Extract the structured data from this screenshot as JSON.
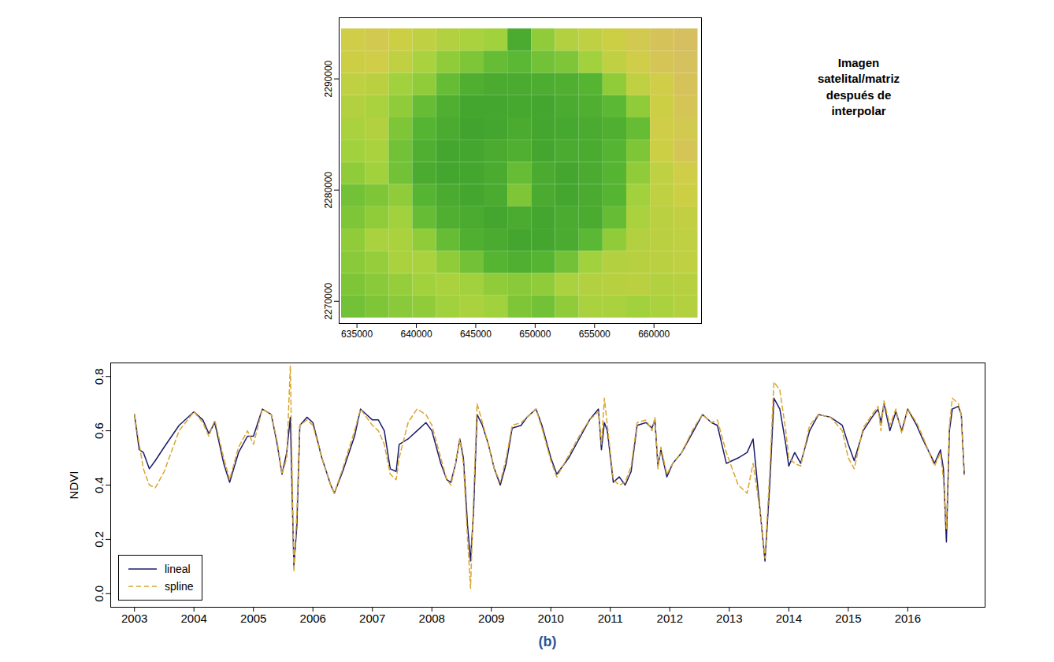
{
  "chart_data": [
    {
      "type": "raster",
      "annotations": [
        "Imagen satelital/matriz después de interpolar"
      ],
      "x": [
        634700,
        636700,
        638700,
        640700,
        642700,
        644700,
        646700,
        648700,
        650700,
        652700,
        654700,
        656700,
        658700,
        660700,
        662700
      ],
      "y": [
        2293500,
        2291500,
        2289500,
        2287500,
        2285500,
        2283500,
        2281500,
        2279500,
        2277500,
        2275500,
        2273500,
        2271500,
        2269500
      ],
      "values": [
        [
          0.4,
          0.38,
          0.42,
          0.45,
          0.48,
          0.5,
          0.52,
          0.7,
          0.55,
          0.48,
          0.45,
          0.42,
          0.38,
          0.35,
          0.33
        ],
        [
          0.42,
          0.4,
          0.45,
          0.5,
          0.55,
          0.58,
          0.62,
          0.64,
          0.6,
          0.58,
          0.52,
          0.45,
          0.4,
          0.36,
          0.34
        ],
        [
          0.45,
          0.46,
          0.52,
          0.55,
          0.62,
          0.68,
          0.7,
          0.7,
          0.69,
          0.68,
          0.66,
          0.55,
          0.45,
          0.4,
          0.35
        ],
        [
          0.48,
          0.5,
          0.55,
          0.62,
          0.68,
          0.72,
          0.72,
          0.71,
          0.72,
          0.7,
          0.68,
          0.64,
          0.55,
          0.42,
          0.36
        ],
        [
          0.5,
          0.48,
          0.58,
          0.66,
          0.7,
          0.73,
          0.72,
          0.7,
          0.72,
          0.71,
          0.7,
          0.68,
          0.62,
          0.4,
          0.38
        ],
        [
          0.52,
          0.5,
          0.6,
          0.68,
          0.72,
          0.72,
          0.7,
          0.68,
          0.72,
          0.7,
          0.7,
          0.66,
          0.58,
          0.42,
          0.36
        ],
        [
          0.55,
          0.52,
          0.6,
          0.7,
          0.72,
          0.72,
          0.7,
          0.62,
          0.7,
          0.72,
          0.7,
          0.66,
          0.55,
          0.45,
          0.4
        ],
        [
          0.6,
          0.58,
          0.55,
          0.66,
          0.7,
          0.72,
          0.7,
          0.58,
          0.7,
          0.72,
          0.7,
          0.66,
          0.52,
          0.45,
          0.42
        ],
        [
          0.58,
          0.55,
          0.52,
          0.62,
          0.68,
          0.7,
          0.72,
          0.7,
          0.72,
          0.7,
          0.7,
          0.62,
          0.5,
          0.46,
          0.44
        ],
        [
          0.55,
          0.5,
          0.5,
          0.55,
          0.62,
          0.68,
          0.7,
          0.72,
          0.72,
          0.7,
          0.64,
          0.55,
          0.48,
          0.46,
          0.45
        ],
        [
          0.56,
          0.54,
          0.5,
          0.5,
          0.55,
          0.6,
          0.66,
          0.68,
          0.66,
          0.6,
          0.52,
          0.48,
          0.47,
          0.46,
          0.45
        ],
        [
          0.58,
          0.56,
          0.54,
          0.52,
          0.5,
          0.52,
          0.55,
          0.56,
          0.55,
          0.5,
          0.48,
          0.47,
          0.46,
          0.48,
          0.47
        ],
        [
          0.6,
          0.58,
          0.56,
          0.55,
          0.52,
          0.5,
          0.52,
          0.58,
          0.6,
          0.55,
          0.5,
          0.5,
          0.52,
          0.5,
          0.48
        ]
      ],
      "color_range": [
        0.3,
        0.75
      ],
      "colors": [
        "#d9b96a",
        "#cfcf45",
        "#9fd13c",
        "#5cb934",
        "#3c9f2d"
      ],
      "xlim": [
        633500,
        664000
      ],
      "ylim": [
        2268000,
        2295500
      ],
      "xticks": [
        635000,
        640000,
        645000,
        650000,
        655000,
        660000
      ],
      "yticks": [
        2270000,
        2280000,
        2290000
      ]
    },
    {
      "type": "line",
      "y_label": "NDVI",
      "caption": "(b)",
      "legend": "bottom-left",
      "x": [
        2003.0,
        2003.08,
        2003.15,
        2003.25,
        2003.35,
        2003.5,
        2003.75,
        2004.0,
        2004.15,
        2004.25,
        2004.35,
        2004.5,
        2004.6,
        2004.75,
        2004.9,
        2005.0,
        2005.15,
        2005.3,
        2005.4,
        2005.48,
        2005.56,
        2005.62,
        2005.68,
        2005.73,
        2005.78,
        2005.9,
        2006.0,
        2006.15,
        2006.3,
        2006.36,
        2006.5,
        2006.7,
        2006.8,
        2006.9,
        2007.0,
        2007.1,
        2007.2,
        2007.3,
        2007.4,
        2007.45,
        2007.6,
        2007.75,
        2007.9,
        2008.0,
        2008.15,
        2008.25,
        2008.32,
        2008.4,
        2008.47,
        2008.53,
        2008.6,
        2008.65,
        2008.7,
        2008.76,
        2008.85,
        2008.95,
        2009.05,
        2009.15,
        2009.25,
        2009.35,
        2009.5,
        2009.6,
        2009.75,
        2009.85,
        2010.0,
        2010.1,
        2010.3,
        2010.5,
        2010.65,
        2010.8,
        2010.85,
        2010.9,
        2010.95,
        2011.05,
        2011.15,
        2011.25,
        2011.35,
        2011.45,
        2011.6,
        2011.7,
        2011.75,
        2011.8,
        2011.85,
        2011.95,
        2012.05,
        2012.2,
        2012.4,
        2012.55,
        2012.7,
        2012.8,
        2012.95,
        2013.15,
        2013.3,
        2013.4,
        2013.52,
        2013.6,
        2013.68,
        2013.75,
        2013.85,
        2013.95,
        2014.0,
        2014.1,
        2014.2,
        2014.35,
        2014.5,
        2014.7,
        2014.9,
        2015.0,
        2015.1,
        2015.25,
        2015.4,
        2015.5,
        2015.55,
        2015.6,
        2015.7,
        2015.8,
        2015.9,
        2016.0,
        2016.15,
        2016.25,
        2016.45,
        2016.55,
        2016.6,
        2016.65,
        2016.7,
        2016.75,
        2016.85,
        2016.9,
        2016.95
      ],
      "series": [
        {
          "name": "lineal",
          "color": "#1b1b6b",
          "line_style": "solid",
          "values": [
            0.66,
            0.53,
            0.52,
            0.46,
            0.49,
            0.54,
            0.62,
            0.67,
            0.64,
            0.59,
            0.63,
            0.48,
            0.41,
            0.52,
            0.58,
            0.58,
            0.68,
            0.66,
            0.55,
            0.44,
            0.52,
            0.65,
            0.1,
            0.25,
            0.62,
            0.65,
            0.63,
            0.5,
            0.4,
            0.37,
            0.45,
            0.58,
            0.68,
            0.66,
            0.64,
            0.64,
            0.6,
            0.46,
            0.45,
            0.55,
            0.57,
            0.6,
            0.63,
            0.6,
            0.48,
            0.42,
            0.41,
            0.48,
            0.57,
            0.5,
            0.25,
            0.12,
            0.3,
            0.66,
            0.62,
            0.55,
            0.46,
            0.4,
            0.48,
            0.61,
            0.62,
            0.65,
            0.68,
            0.62,
            0.5,
            0.44,
            0.5,
            0.58,
            0.64,
            0.68,
            0.53,
            0.63,
            0.6,
            0.41,
            0.43,
            0.4,
            0.45,
            0.62,
            0.63,
            0.61,
            0.64,
            0.47,
            0.53,
            0.43,
            0.48,
            0.52,
            0.6,
            0.66,
            0.63,
            0.62,
            0.48,
            0.5,
            0.52,
            0.57,
            0.3,
            0.12,
            0.4,
            0.72,
            0.68,
            0.55,
            0.47,
            0.52,
            0.48,
            0.6,
            0.66,
            0.65,
            0.62,
            0.55,
            0.49,
            0.6,
            0.65,
            0.68,
            0.63,
            0.7,
            0.6,
            0.67,
            0.6,
            0.68,
            0.62,
            0.57,
            0.48,
            0.53,
            0.46,
            0.19,
            0.6,
            0.68,
            0.69,
            0.66,
            0.44
          ]
        },
        {
          "name": "spline",
          "color": "#d9a62e",
          "line_style": "dashed",
          "values": [
            0.66,
            0.55,
            0.46,
            0.4,
            0.39,
            0.45,
            0.6,
            0.67,
            0.63,
            0.58,
            0.64,
            0.5,
            0.42,
            0.54,
            0.6,
            0.55,
            0.68,
            0.66,
            0.56,
            0.44,
            0.5,
            0.84,
            0.08,
            0.3,
            0.62,
            0.64,
            0.62,
            0.5,
            0.4,
            0.37,
            0.46,
            0.6,
            0.68,
            0.65,
            0.62,
            0.6,
            0.55,
            0.44,
            0.42,
            0.5,
            0.63,
            0.68,
            0.66,
            0.62,
            0.5,
            0.42,
            0.4,
            0.48,
            0.57,
            0.48,
            0.2,
            0.02,
            0.35,
            0.7,
            0.63,
            0.55,
            0.46,
            0.41,
            0.5,
            0.62,
            0.63,
            0.65,
            0.68,
            0.61,
            0.49,
            0.43,
            0.51,
            0.59,
            0.64,
            0.67,
            0.55,
            0.72,
            0.62,
            0.42,
            0.4,
            0.41,
            0.47,
            0.63,
            0.64,
            0.6,
            0.65,
            0.46,
            0.54,
            0.44,
            0.48,
            0.52,
            0.61,
            0.66,
            0.63,
            0.64,
            0.52,
            0.4,
            0.37,
            0.48,
            0.3,
            0.13,
            0.45,
            0.78,
            0.75,
            0.6,
            0.5,
            0.48,
            0.47,
            0.62,
            0.66,
            0.65,
            0.6,
            0.5,
            0.46,
            0.61,
            0.66,
            0.69,
            0.6,
            0.71,
            0.62,
            0.68,
            0.59,
            0.68,
            0.63,
            0.58,
            0.47,
            0.52,
            0.42,
            0.24,
            0.62,
            0.72,
            0.7,
            0.66,
            0.44
          ]
        }
      ],
      "xlim": [
        2002.6,
        2017.3
      ],
      "ylim": [
        -0.05,
        0.85
      ],
      "xticks": [
        2003,
        2004,
        2005,
        2006,
        2007,
        2008,
        2009,
        2010,
        2011,
        2012,
        2013,
        2014,
        2015,
        2016
      ],
      "yticks": [
        {
          "value": 0,
          "label": "0.0"
        },
        0.2,
        0.4,
        0.6,
        0.8
      ]
    }
  ]
}
